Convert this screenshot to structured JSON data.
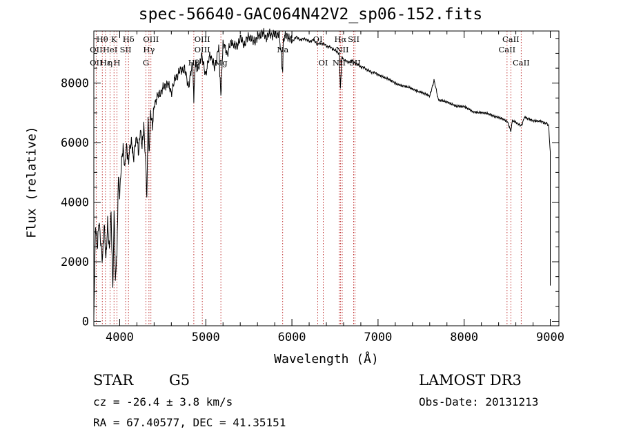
{
  "chart_data": {
    "type": "line",
    "title": "spec-56640-GAC064N42V2_sp06-152.fits",
    "xlabel": "Wavelength (Å)",
    "ylabel": "Flux (relative)",
    "xlim": [
      3700,
      9100
    ],
    "ylim": [
      -150,
      9750
    ],
    "x_ticks": [
      4000,
      5000,
      6000,
      7000,
      8000,
      9000
    ],
    "y_ticks": [
      0,
      2000,
      4000,
      6000,
      8000
    ],
    "x_tick_labels": [
      "4000",
      "5000",
      "6000",
      "7000",
      "8000",
      "9000"
    ],
    "y_tick_labels": [
      "0",
      "2000",
      "4000",
      "6000",
      "8000"
    ],
    "series": [
      {
        "name": "flux",
        "x": [
          3700,
          3720,
          3740,
          3760,
          3780,
          3800,
          3820,
          3840,
          3860,
          3880,
          3900,
          3920,
          3935,
          3950,
          3968,
          3985,
          4000,
          4020,
          4040,
          4060,
          4080,
          4101,
          4120,
          4140,
          4160,
          4180,
          4200,
          4220,
          4240,
          4260,
          4280,
          4300,
          4315,
          4330,
          4340,
          4360,
          4380,
          4400,
          4450,
          4500,
          4550,
          4600,
          4650,
          4700,
          4750,
          4800,
          4850,
          4861,
          4880,
          4900,
          4950,
          5000,
          5050,
          5100,
          5150,
          5175,
          5200,
          5250,
          5300,
          5350,
          5400,
          5450,
          5500,
          5550,
          5600,
          5650,
          5700,
          5750,
          5800,
          5850,
          5893,
          5900,
          5950,
          6000,
          6050,
          6100,
          6150,
          6200,
          6250,
          6300,
          6350,
          6400,
          6450,
          6500,
          6550,
          6563,
          6580,
          6600,
          6650,
          6700,
          6750,
          6800,
          6850,
          6900,
          6950,
          7000,
          7100,
          7200,
          7300,
          7400,
          7500,
          7600,
          7650,
          7700,
          7800,
          7900,
          8000,
          8100,
          8200,
          8300,
          8400,
          8500,
          8542,
          8560,
          8600,
          8662,
          8700,
          8800,
          8900,
          8950,
          8980,
          9000
        ],
        "y": [
          300,
          3300,
          2500,
          3400,
          2600,
          2000,
          3200,
          2000,
          3300,
          2400,
          3700,
          1100,
          3600,
          1600,
          2200,
          4800,
          4200,
          5200,
          5800,
          5100,
          5900,
          5400,
          5900,
          6100,
          5500,
          6000,
          6200,
          5600,
          6400,
          5800,
          6500,
          5400,
          4200,
          6800,
          5600,
          7100,
          6600,
          7300,
          7600,
          7800,
          8000,
          7700,
          8200,
          8400,
          8500,
          7900,
          8700,
          7400,
          8800,
          8400,
          8900,
          8300,
          9000,
          8500,
          9200,
          7600,
          9300,
          9000,
          9400,
          9200,
          9500,
          9300,
          9600,
          9400,
          9500,
          9700,
          9550,
          9650,
          9600,
          9700,
          8300,
          9500,
          9600,
          9400,
          9550,
          9450,
          9500,
          9400,
          9450,
          9300,
          9350,
          9250,
          9200,
          9100,
          9000,
          7800,
          8900,
          8800,
          8700,
          8750,
          8650,
          8550,
          8500,
          8400,
          8350,
          8300,
          8150,
          8000,
          7900,
          7800,
          7700,
          7550,
          8100,
          7450,
          7350,
          7250,
          7200,
          7050,
          7000,
          6950,
          6850,
          6700,
          6400,
          6750,
          6700,
          6550,
          6850,
          6750,
          6700,
          6650,
          6600,
          5700
        ]
      }
    ],
    "lines": [
      {
        "name": "Hθ",
        "x": 3798,
        "row": 0
      },
      {
        "name": "OII",
        "x": 3727,
        "row": 1
      },
      {
        "name": "OII",
        "x": 3727,
        "row": 2
      },
      {
        "name": "Hε",
        "x": 3835,
        "row": 2
      },
      {
        "name": "η",
        "x": 3889,
        "row": 2
      },
      {
        "name": "K",
        "x": 3934,
        "row": 0
      },
      {
        "name": "HeI",
        "x": 3889,
        "row": 1
      },
      {
        "name": "SII",
        "x": 4069,
        "row": 1
      },
      {
        "name": "H",
        "x": 3969,
        "row": 2
      },
      {
        "name": "Hδ",
        "x": 4102,
        "row": 0
      },
      {
        "name": "OIII",
        "x": 4363,
        "row": 0
      },
      {
        "name": "Hγ",
        "x": 4340,
        "row": 1
      },
      {
        "name": "G",
        "x": 4305,
        "row": 2
      },
      {
        "name": "OIII",
        "x": 4959,
        "row": 0
      },
      {
        "name": "OIII",
        "x": 4959,
        "row": 1
      },
      {
        "name": "Hβ",
        "x": 4861,
        "row": 2
      },
      {
        "name": "Mg",
        "x": 5175,
        "row": 2
      },
      {
        "name": "Na",
        "x": 5893,
        "row": 1
      },
      {
        "name": "OI",
        "x": 6300,
        "row": 0
      },
      {
        "name": "OI",
        "x": 6364,
        "row": 2
      },
      {
        "name": "Hα",
        "x": 6563,
        "row": 0
      },
      {
        "name": "SII",
        "x": 6717,
        "row": 0
      },
      {
        "name": "NII",
        "x": 6584,
        "row": 1
      },
      {
        "name": "NII",
        "x": 6548,
        "row": 2
      },
      {
        "name": "SII",
        "x": 6731,
        "row": 2
      },
      {
        "name": "CaII",
        "x": 8542,
        "row": 0
      },
      {
        "name": "CaII",
        "x": 8498,
        "row": 1
      },
      {
        "name": "CaII",
        "x": 8662,
        "row": 2
      }
    ]
  },
  "info": {
    "obj_class": "STAR",
    "subclass": "G5",
    "cz": "cz = -26.4 ± 3.8 km/s",
    "radec": "RA =  67.40577, DEC =  41.35151",
    "survey": "LAMOST DR3",
    "obs_date": "Obs-Date: 20131213"
  },
  "colors": {
    "spectrum": "#000000",
    "line_markers": "#b00000"
  }
}
